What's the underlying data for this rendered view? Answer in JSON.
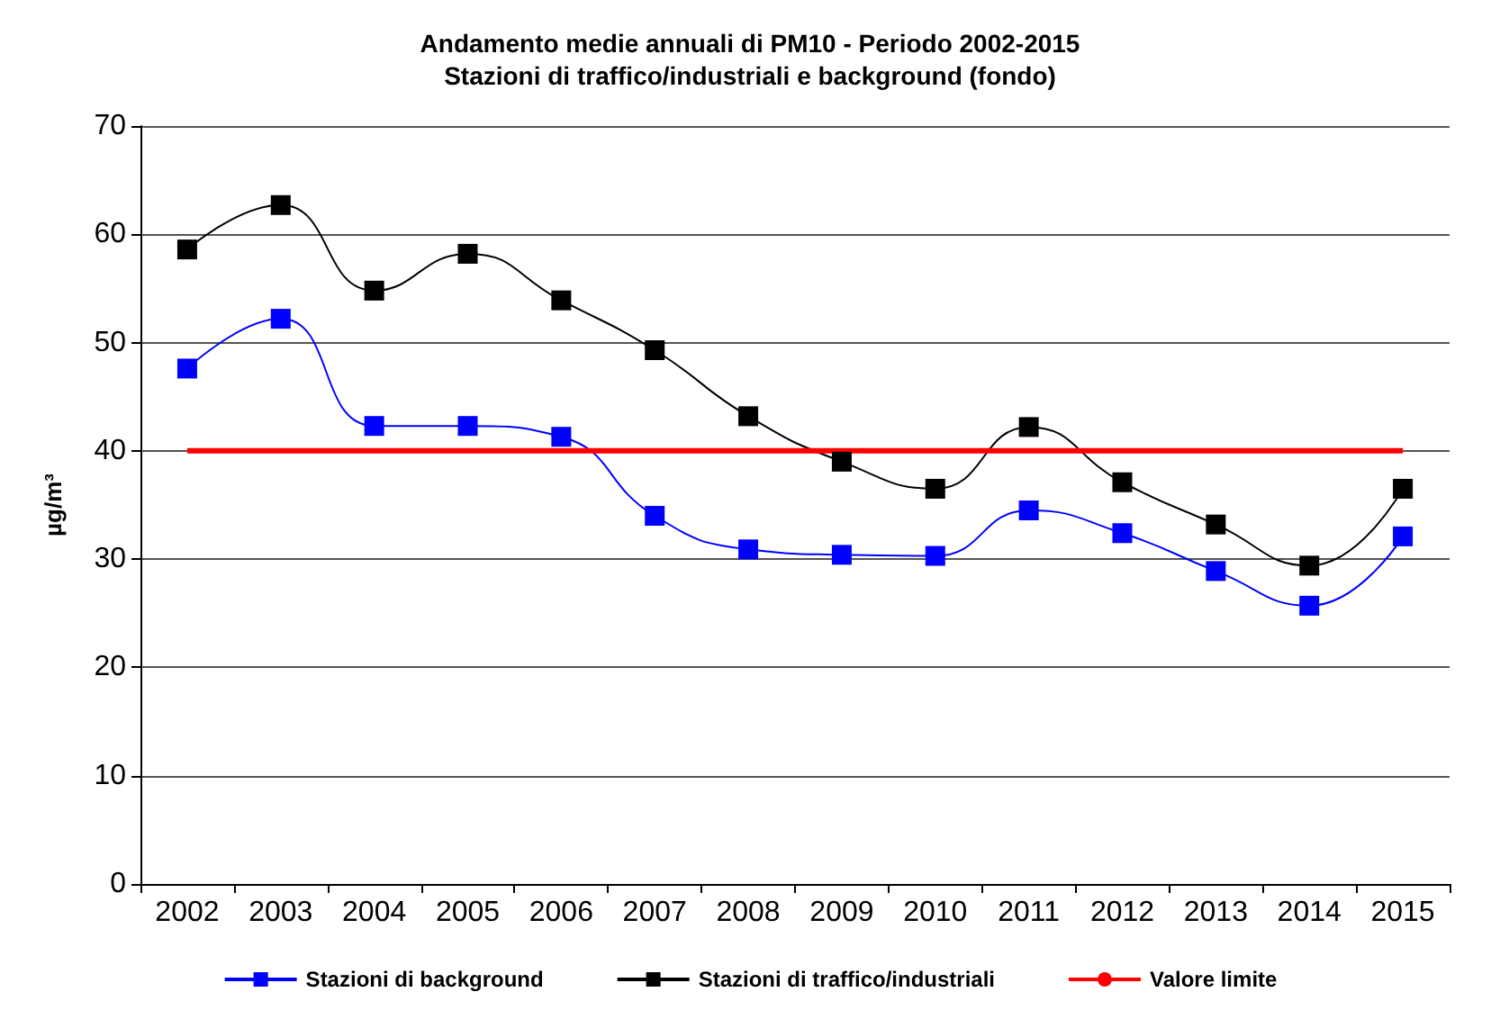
{
  "chart_data": {
    "type": "line",
    "title": "Andamento medie annuali di PM10 - Periodo 2002-2015",
    "subtitle": "Stazioni di traffico/industriali e background (fondo)",
    "ylabel": "µg/m³",
    "categories": [
      "2002",
      "2003",
      "2004",
      "2005",
      "2006",
      "2007",
      "2008",
      "2009",
      "2010",
      "2011",
      "2012",
      "2013",
      "2014",
      "2015"
    ],
    "series": [
      {
        "name": "Stazioni di background",
        "color": "#0000ff",
        "values": [
          47.6,
          52.2,
          42.3,
          42.3,
          41.3,
          34.0,
          30.9,
          30.4,
          30.3,
          34.5,
          32.4,
          28.9,
          25.7,
          32.1
        ]
      },
      {
        "name": "Stazioni di traffico/industriali",
        "color": "#000000",
        "values": [
          58.6,
          62.7,
          54.8,
          58.2,
          53.9,
          49.3,
          43.2,
          39.0,
          36.5,
          42.2,
          37.1,
          33.2,
          29.4,
          36.5
        ]
      },
      {
        "name": "Valore limite",
        "color": "#ff0000",
        "marker": "none",
        "values": [
          40,
          40,
          40,
          40,
          40,
          40,
          40,
          40,
          40,
          40,
          40,
          40,
          40,
          40
        ]
      }
    ],
    "ylim": [
      0,
      70
    ],
    "yticks": [
      0,
      10,
      20,
      30,
      40,
      50,
      60,
      70
    ],
    "grid": "y",
    "legend": "bottom",
    "marker": "square"
  }
}
